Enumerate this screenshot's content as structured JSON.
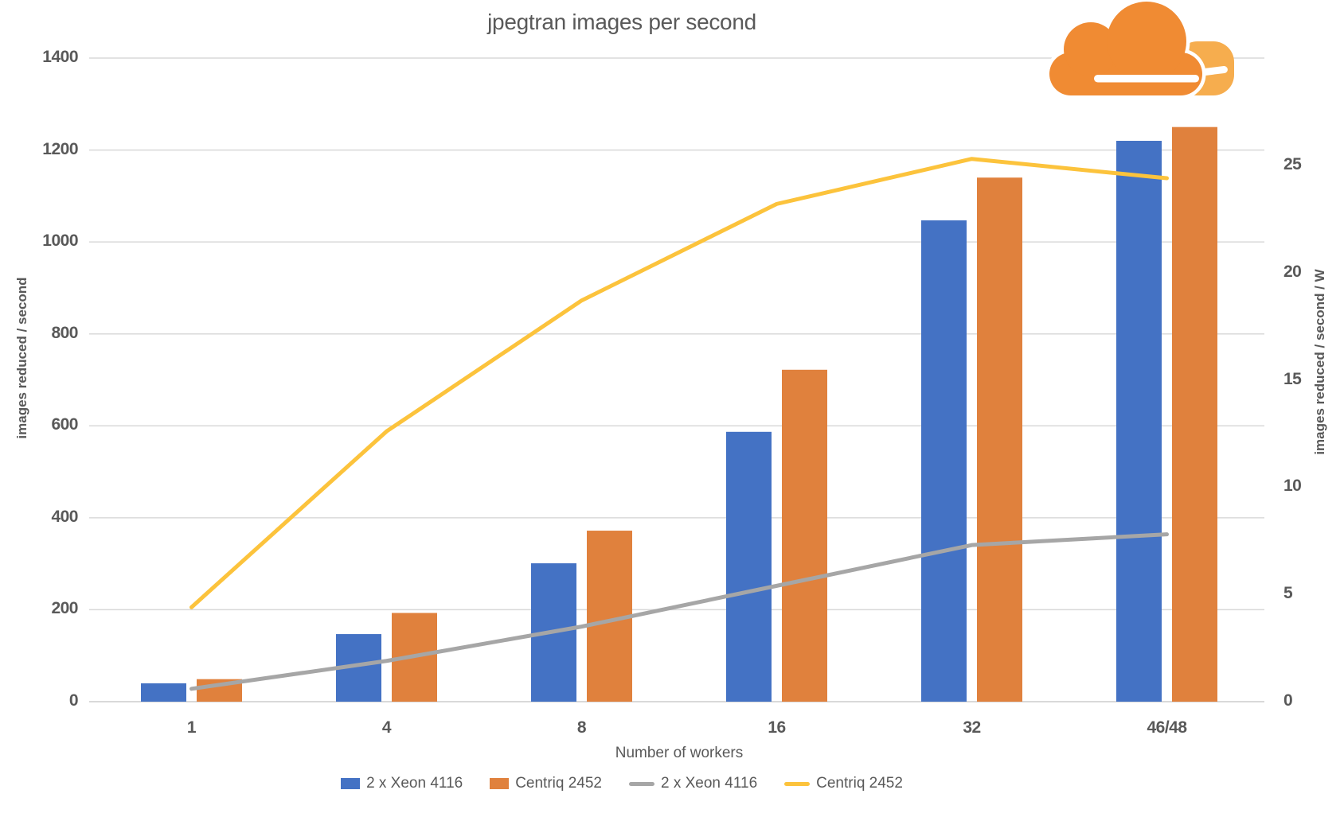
{
  "title": "jpegtran images per second",
  "logo": {
    "name": "cloudflare-logo",
    "primary_color": "#F08B33",
    "secondary_color": "#F6AD4E"
  },
  "xaxis": {
    "title": "Number of workers"
  },
  "chart_data": {
    "type": "bar",
    "subtype": "combo-bar-line",
    "title": "jpegtran images per second",
    "categories": [
      "1",
      "4",
      "8",
      "16",
      "32",
      "46/48"
    ],
    "series": [
      {
        "name": "2 x Xeon 4116",
        "render": "bar",
        "axis": "left",
        "color": "#4472C4",
        "values": [
          40,
          147,
          301,
          587,
          1047,
          1220
        ]
      },
      {
        "name": "Centriq 2452",
        "render": "bar",
        "axis": "left",
        "color": "#E0813D",
        "values": [
          49,
          193,
          372,
          722,
          1140,
          1250
        ]
      },
      {
        "name": "2 x Xeon 4116",
        "render": "line",
        "axis": "right",
        "color": "#A6A6A6",
        "values": [
          0.6,
          1.9,
          3.5,
          5.4,
          7.3,
          7.8
        ]
      },
      {
        "name": "Centriq 2452",
        "render": "line",
        "axis": "right",
        "color": "#FCC33C",
        "values": [
          4.4,
          12.6,
          18.7,
          23.2,
          25.3,
          24.4
        ]
      }
    ],
    "xlabel": "Number of workers",
    "left_axis": {
      "label": "images reduced / second",
      "min": 0,
      "max": 1400,
      "step": 200,
      "ticks": [
        "0",
        "200",
        "400",
        "600",
        "800",
        "1000",
        "1200",
        "1400"
      ]
    },
    "right_axis": {
      "label": "images reduced / second / W",
      "min": 0,
      "max": 30,
      "step": 5,
      "ticks": [
        "0",
        "5",
        "10",
        "15",
        "20",
        "25"
      ]
    },
    "grid": true,
    "gridline_color": "#D9D9D9",
    "legend_position": "bottom"
  },
  "legend": {
    "items": [
      {
        "label": "2 x Xeon 4116",
        "swatch": "bar",
        "color": "#4472C4"
      },
      {
        "label": "Centriq 2452",
        "swatch": "bar",
        "color": "#E0813D"
      },
      {
        "label": "2 x Xeon 4116",
        "swatch": "line",
        "color": "#A6A6A6"
      },
      {
        "label": "Centriq 2452",
        "swatch": "line",
        "color": "#FCC33C"
      }
    ]
  }
}
